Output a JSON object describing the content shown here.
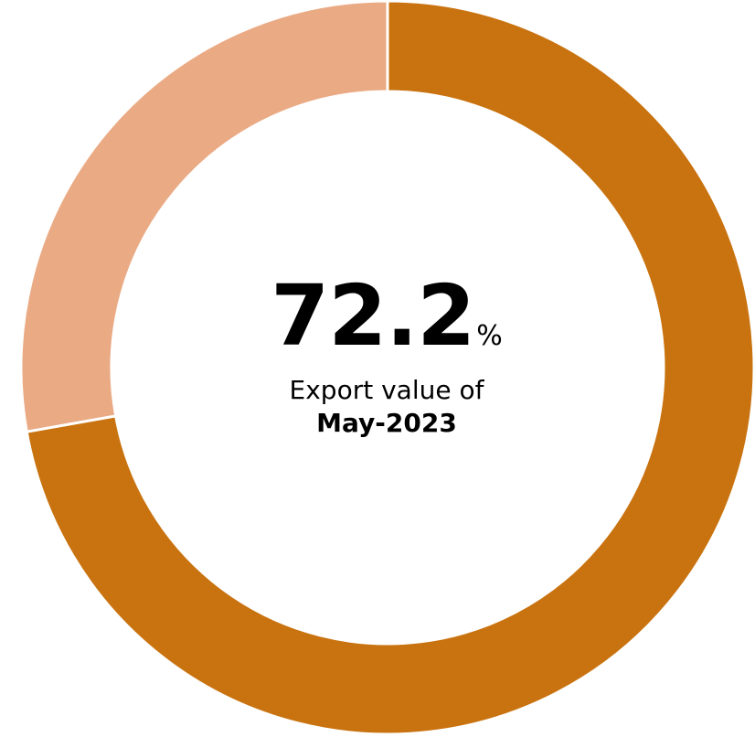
{
  "chart_data": {
    "type": "pie",
    "subtype": "donut",
    "categories": [
      "",
      ""
    ],
    "values": [
      72.2,
      27.8
    ],
    "colors": [
      "#c97310",
      "#eaaa84"
    ],
    "legend": "none",
    "center": {
      "value": "72.2",
      "unit": "%",
      "caption": "Export value of",
      "caption_bold": "May-2023"
    }
  }
}
